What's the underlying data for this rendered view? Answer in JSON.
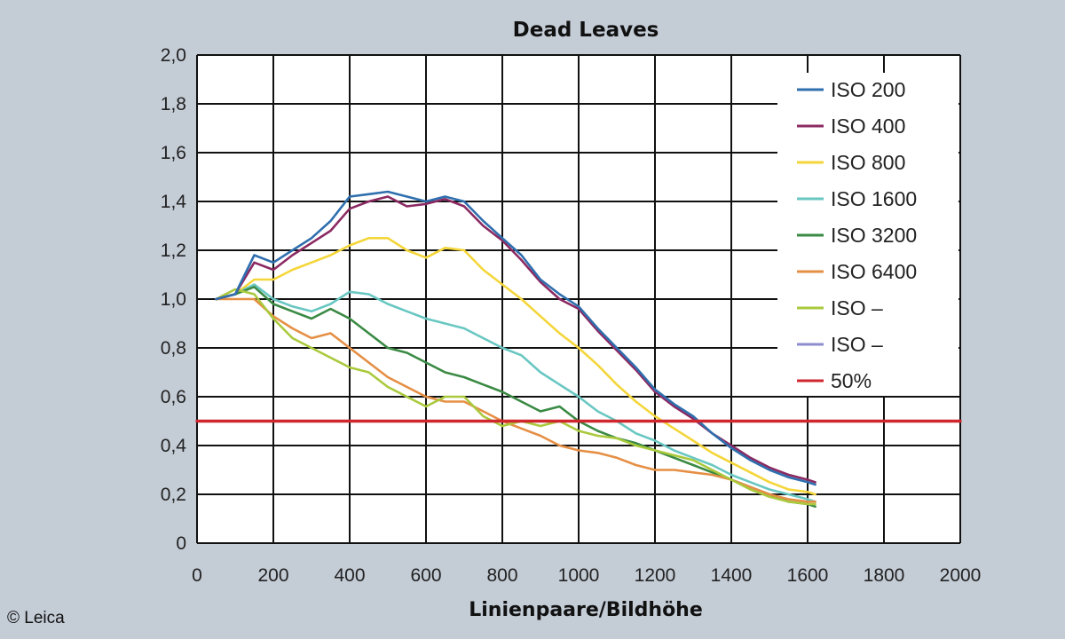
{
  "copyright": "© Leica",
  "chart_data": {
    "type": "line",
    "title": "Dead Leaves",
    "xlabel": "Linienpaare/Bildhöhe",
    "ylabel": "",
    "xlim": [
      0,
      2000
    ],
    "ylim": [
      0,
      2.0
    ],
    "xticks": [
      "0",
      "200",
      "400",
      "600",
      "800",
      "1000",
      "1200",
      "1400",
      "1600",
      "1800",
      "2000"
    ],
    "yticks": [
      "0",
      "0,2",
      "0,4",
      "0,6",
      "0,8",
      "1,0",
      "1,2",
      "1,4",
      "1,6",
      "1,8",
      "2,0"
    ],
    "grid": true,
    "legend_position": "top-right",
    "series": [
      {
        "name": "ISO 200",
        "color": "#2f6fae",
        "points": [
          [
            50,
            1.0
          ],
          [
            100,
            1.02
          ],
          [
            150,
            1.18
          ],
          [
            200,
            1.15
          ],
          [
            250,
            1.2
          ],
          [
            300,
            1.25
          ],
          [
            350,
            1.32
          ],
          [
            400,
            1.42
          ],
          [
            450,
            1.43
          ],
          [
            500,
            1.44
          ],
          [
            550,
            1.42
          ],
          [
            600,
            1.4
          ],
          [
            650,
            1.42
          ],
          [
            700,
            1.4
          ],
          [
            750,
            1.32
          ],
          [
            800,
            1.25
          ],
          [
            850,
            1.18
          ],
          [
            900,
            1.08
          ],
          [
            950,
            1.02
          ],
          [
            1000,
            0.97
          ],
          [
            1050,
            0.88
          ],
          [
            1100,
            0.8
          ],
          [
            1150,
            0.72
          ],
          [
            1200,
            0.63
          ],
          [
            1250,
            0.57
          ],
          [
            1300,
            0.52
          ],
          [
            1350,
            0.45
          ],
          [
            1400,
            0.39
          ],
          [
            1450,
            0.34
          ],
          [
            1500,
            0.3
          ],
          [
            1550,
            0.27
          ],
          [
            1600,
            0.25
          ],
          [
            1620,
            0.24
          ]
        ]
      },
      {
        "name": "ISO 400",
        "color": "#8b2a62",
        "points": [
          [
            50,
            1.0
          ],
          [
            100,
            1.02
          ],
          [
            150,
            1.15
          ],
          [
            200,
            1.12
          ],
          [
            250,
            1.18
          ],
          [
            300,
            1.23
          ],
          [
            350,
            1.28
          ],
          [
            400,
            1.37
          ],
          [
            450,
            1.4
          ],
          [
            500,
            1.42
          ],
          [
            550,
            1.38
          ],
          [
            600,
            1.39
          ],
          [
            650,
            1.41
          ],
          [
            700,
            1.38
          ],
          [
            750,
            1.3
          ],
          [
            800,
            1.24
          ],
          [
            850,
            1.16
          ],
          [
            900,
            1.07
          ],
          [
            950,
            1.0
          ],
          [
            1000,
            0.96
          ],
          [
            1050,
            0.87
          ],
          [
            1100,
            0.79
          ],
          [
            1150,
            0.71
          ],
          [
            1200,
            0.62
          ],
          [
            1250,
            0.56
          ],
          [
            1300,
            0.51
          ],
          [
            1350,
            0.45
          ],
          [
            1400,
            0.4
          ],
          [
            1450,
            0.35
          ],
          [
            1500,
            0.31
          ],
          [
            1550,
            0.28
          ],
          [
            1600,
            0.26
          ],
          [
            1620,
            0.25
          ]
        ]
      },
      {
        "name": "ISO 800",
        "color": "#f4d63a",
        "points": [
          [
            50,
            1.0
          ],
          [
            100,
            1.02
          ],
          [
            150,
            1.08
          ],
          [
            200,
            1.08
          ],
          [
            250,
            1.12
          ],
          [
            300,
            1.15
          ],
          [
            350,
            1.18
          ],
          [
            400,
            1.22
          ],
          [
            450,
            1.25
          ],
          [
            500,
            1.25
          ],
          [
            550,
            1.2
          ],
          [
            600,
            1.17
          ],
          [
            650,
            1.21
          ],
          [
            700,
            1.2
          ],
          [
            750,
            1.12
          ],
          [
            800,
            1.06
          ],
          [
            850,
            1.0
          ],
          [
            900,
            0.93
          ],
          [
            950,
            0.86
          ],
          [
            1000,
            0.8
          ],
          [
            1050,
            0.73
          ],
          [
            1100,
            0.65
          ],
          [
            1150,
            0.58
          ],
          [
            1200,
            0.52
          ],
          [
            1250,
            0.47
          ],
          [
            1300,
            0.42
          ],
          [
            1350,
            0.37
          ],
          [
            1400,
            0.33
          ],
          [
            1450,
            0.29
          ],
          [
            1500,
            0.25
          ],
          [
            1550,
            0.22
          ],
          [
            1600,
            0.21
          ],
          [
            1620,
            0.2
          ]
        ]
      },
      {
        "name": "ISO 1600",
        "color": "#69c7c2",
        "points": [
          [
            50,
            1.0
          ],
          [
            100,
            1.02
          ],
          [
            150,
            1.06
          ],
          [
            200,
            1.0
          ],
          [
            250,
            0.97
          ],
          [
            300,
            0.95
          ],
          [
            350,
            0.98
          ],
          [
            400,
            1.03
          ],
          [
            450,
            1.02
          ],
          [
            500,
            0.98
          ],
          [
            550,
            0.95
          ],
          [
            600,
            0.92
          ],
          [
            650,
            0.9
          ],
          [
            700,
            0.88
          ],
          [
            750,
            0.84
          ],
          [
            800,
            0.8
          ],
          [
            850,
            0.77
          ],
          [
            900,
            0.7
          ],
          [
            950,
            0.65
          ],
          [
            1000,
            0.6
          ],
          [
            1050,
            0.54
          ],
          [
            1100,
            0.5
          ],
          [
            1150,
            0.45
          ],
          [
            1200,
            0.42
          ],
          [
            1250,
            0.38
          ],
          [
            1300,
            0.35
          ],
          [
            1350,
            0.32
          ],
          [
            1400,
            0.28
          ],
          [
            1450,
            0.25
          ],
          [
            1500,
            0.22
          ],
          [
            1550,
            0.2
          ],
          [
            1600,
            0.18
          ],
          [
            1620,
            0.17
          ]
        ]
      },
      {
        "name": "ISO 3200",
        "color": "#3a8a44",
        "points": [
          [
            50,
            1.0
          ],
          [
            100,
            1.02
          ],
          [
            150,
            1.05
          ],
          [
            200,
            0.98
          ],
          [
            250,
            0.95
          ],
          [
            300,
            0.92
          ],
          [
            350,
            0.96
          ],
          [
            400,
            0.92
          ],
          [
            450,
            0.86
          ],
          [
            500,
            0.8
          ],
          [
            550,
            0.78
          ],
          [
            600,
            0.74
          ],
          [
            650,
            0.7
          ],
          [
            700,
            0.68
          ],
          [
            750,
            0.65
          ],
          [
            800,
            0.62
          ],
          [
            850,
            0.58
          ],
          [
            900,
            0.54
          ],
          [
            950,
            0.56
          ],
          [
            1000,
            0.5
          ],
          [
            1050,
            0.46
          ],
          [
            1100,
            0.43
          ],
          [
            1150,
            0.41
          ],
          [
            1200,
            0.38
          ],
          [
            1250,
            0.35
          ],
          [
            1300,
            0.32
          ],
          [
            1350,
            0.29
          ],
          [
            1400,
            0.26
          ],
          [
            1450,
            0.23
          ],
          [
            1500,
            0.2
          ],
          [
            1550,
            0.17
          ],
          [
            1600,
            0.16
          ],
          [
            1620,
            0.15
          ]
        ]
      },
      {
        "name": "ISO 6400",
        "color": "#e58f45",
        "points": [
          [
            50,
            1.0
          ],
          [
            100,
            1.0
          ],
          [
            150,
            1.0
          ],
          [
            200,
            0.93
          ],
          [
            250,
            0.88
          ],
          [
            300,
            0.84
          ],
          [
            350,
            0.86
          ],
          [
            400,
            0.8
          ],
          [
            450,
            0.74
          ],
          [
            500,
            0.68
          ],
          [
            550,
            0.64
          ],
          [
            600,
            0.6
          ],
          [
            650,
            0.58
          ],
          [
            700,
            0.58
          ],
          [
            750,
            0.54
          ],
          [
            800,
            0.5
          ],
          [
            850,
            0.47
          ],
          [
            900,
            0.44
          ],
          [
            950,
            0.4
          ],
          [
            1000,
            0.38
          ],
          [
            1050,
            0.37
          ],
          [
            1100,
            0.35
          ],
          [
            1150,
            0.32
          ],
          [
            1200,
            0.3
          ],
          [
            1250,
            0.3
          ],
          [
            1300,
            0.29
          ],
          [
            1350,
            0.28
          ],
          [
            1400,
            0.26
          ],
          [
            1450,
            0.23
          ],
          [
            1500,
            0.2
          ],
          [
            1550,
            0.18
          ],
          [
            1600,
            0.17
          ],
          [
            1620,
            0.17
          ]
        ]
      },
      {
        "name": "ISO –",
        "color": "#aac93c",
        "points": [
          [
            50,
            1.0
          ],
          [
            100,
            1.04
          ],
          [
            150,
            1.02
          ],
          [
            200,
            0.92
          ],
          [
            250,
            0.84
          ],
          [
            300,
            0.8
          ],
          [
            350,
            0.76
          ],
          [
            400,
            0.72
          ],
          [
            450,
            0.7
          ],
          [
            500,
            0.64
          ],
          [
            550,
            0.6
          ],
          [
            600,
            0.56
          ],
          [
            650,
            0.6
          ],
          [
            700,
            0.6
          ],
          [
            750,
            0.52
          ],
          [
            800,
            0.48
          ],
          [
            850,
            0.5
          ],
          [
            900,
            0.48
          ],
          [
            950,
            0.5
          ],
          [
            1000,
            0.46
          ],
          [
            1050,
            0.44
          ],
          [
            1100,
            0.43
          ],
          [
            1150,
            0.4
          ],
          [
            1200,
            0.38
          ],
          [
            1250,
            0.36
          ],
          [
            1300,
            0.34
          ],
          [
            1350,
            0.3
          ],
          [
            1400,
            0.26
          ],
          [
            1450,
            0.22
          ],
          [
            1500,
            0.19
          ],
          [
            1550,
            0.17
          ],
          [
            1600,
            0.16
          ],
          [
            1620,
            0.16
          ]
        ]
      },
      {
        "name": "ISO –",
        "color": "#8c8ccf",
        "points": []
      },
      {
        "name": "50%",
        "color": "#d0272f",
        "points": [
          [
            0,
            0.5
          ],
          [
            2000,
            0.5
          ]
        ]
      }
    ]
  }
}
